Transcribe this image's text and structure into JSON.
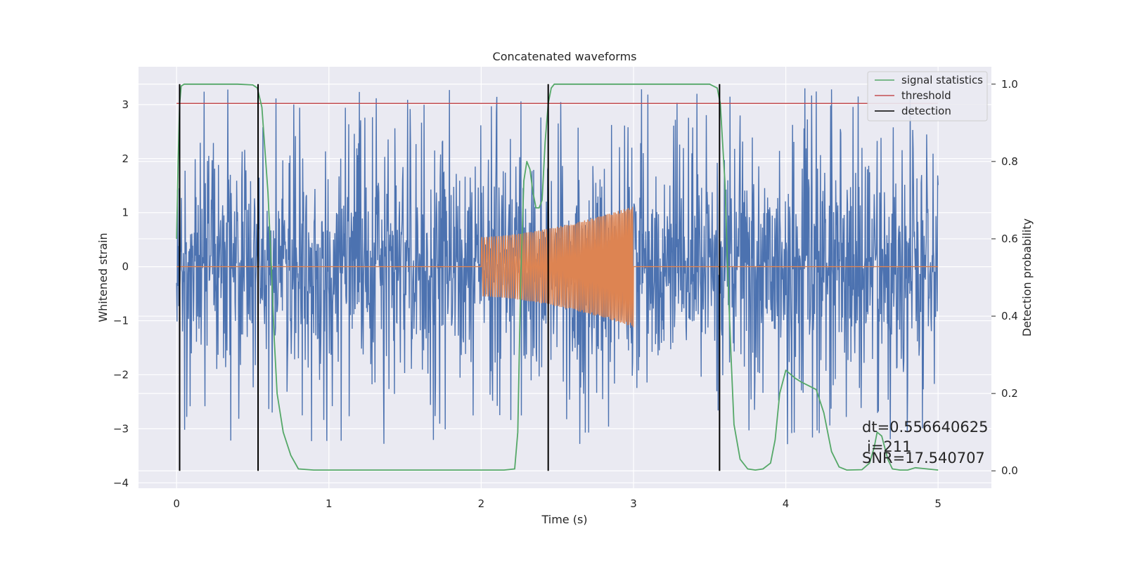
{
  "chart_data": {
    "type": "line",
    "title": "Concatenated waveforms",
    "xlabel": "Time (s)",
    "ylabel": "Whitened strain",
    "ylabel_right": "Detection probability",
    "xlim": [
      -0.25,
      5.35
    ],
    "ylim": [
      -4.1,
      3.7
    ],
    "ylim_right": [
      -0.045,
      1.045
    ],
    "xticks": [
      0,
      1,
      2,
      3,
      4,
      5
    ],
    "yticks": [
      -4,
      -3,
      -2,
      -1,
      0,
      1,
      2,
      3
    ],
    "yticks_right": [
      0.0,
      0.2,
      0.4,
      0.6,
      0.8,
      1.0
    ],
    "grid": true,
    "legend_position": "top-right",
    "colors": {
      "background": "#eaeaf2",
      "strain": "#4c72b0",
      "injected": "#dd8452",
      "signal_statistics": "#55a868",
      "threshold": "#c44e52",
      "detection": "#000000"
    },
    "series": [
      {
        "name": "signal statistics",
        "axis": "right",
        "x": [
          0.0,
          0.01,
          0.02,
          0.03,
          0.05,
          0.08,
          0.12,
          0.2,
          0.3,
          0.4,
          0.5,
          0.53,
          0.56,
          0.6,
          0.62,
          0.64,
          0.66,
          0.7,
          0.75,
          0.8,
          0.9,
          1.0,
          1.5,
          2.0,
          2.15,
          2.22,
          2.24,
          2.25,
          2.26,
          2.28,
          2.3,
          2.32,
          2.34,
          2.36,
          2.38,
          2.4,
          2.42,
          2.44,
          2.46,
          2.48,
          2.52,
          2.6,
          3.0,
          3.5,
          3.55,
          3.57,
          3.6,
          3.62,
          3.64,
          3.66,
          3.7,
          3.75,
          3.8,
          3.85,
          3.9,
          3.93,
          3.96,
          4.0,
          4.03,
          4.06,
          4.1,
          4.15,
          4.2,
          4.25,
          4.3,
          4.35,
          4.4,
          4.5,
          4.55,
          4.58,
          4.6,
          4.63,
          4.67,
          4.7,
          4.75,
          4.8,
          4.85,
          4.9,
          5.0
        ],
        "values": [
          0.6,
          0.8,
          0.95,
          0.995,
          1.0,
          1.0,
          1.0,
          1.0,
          1.0,
          1.0,
          0.998,
          0.99,
          0.94,
          0.72,
          0.55,
          0.35,
          0.2,
          0.1,
          0.04,
          0.005,
          0.002,
          0.002,
          0.002,
          0.002,
          0.002,
          0.005,
          0.1,
          0.3,
          0.5,
          0.75,
          0.8,
          0.78,
          0.72,
          0.68,
          0.68,
          0.7,
          0.85,
          0.95,
          0.99,
          1.0,
          1.0,
          1.0,
          1.0,
          1.0,
          0.99,
          0.95,
          0.75,
          0.5,
          0.3,
          0.12,
          0.03,
          0.005,
          0.002,
          0.005,
          0.02,
          0.08,
          0.2,
          0.26,
          0.25,
          0.24,
          0.23,
          0.22,
          0.21,
          0.15,
          0.05,
          0.01,
          0.002,
          0.003,
          0.02,
          0.06,
          0.1,
          0.09,
          0.03,
          0.005,
          0.002,
          0.002,
          0.008,
          0.006,
          0.002
        ]
      },
      {
        "name": "threshold",
        "axis": "right",
        "x": [
          0.0,
          5.0
        ],
        "values": [
          0.95,
          0.95
        ]
      },
      {
        "name": "detection",
        "axis": "right",
        "x_positions": [
          0.02,
          0.535,
          2.44,
          3.565
        ],
        "range": [
          0.0,
          1.0
        ]
      },
      {
        "name": "",
        "axis": "left",
        "kind": "noise",
        "x_range": [
          0.0,
          5.0
        ],
        "amplitude": 3.3,
        "spread": 1.6
      },
      {
        "name": "",
        "axis": "left",
        "kind": "chirp",
        "x_range": [
          2.0,
          3.0
        ],
        "amplitude_start": 0.55,
        "amplitude_end": 1.12
      }
    ],
    "annotations": [
      "dt=0.556640625",
      "i=211",
      "SNR=17.540707"
    ]
  }
}
